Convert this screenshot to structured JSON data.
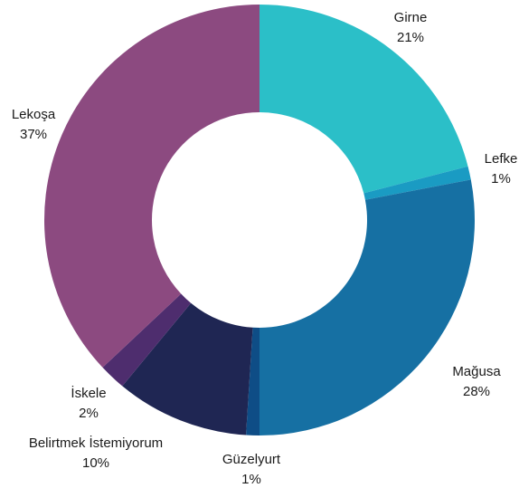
{
  "chart_data": {
    "type": "pie",
    "variant": "donut",
    "start": "top",
    "direction": "clockwise",
    "slices": [
      {
        "label": "Girne",
        "value": 21,
        "value_label": "21%",
        "color": "#2bbfc8"
      },
      {
        "label": "Lefke",
        "value": 1,
        "value_label": "1%",
        "color": "#1a9bc3"
      },
      {
        "label": "Mağusa",
        "value": 28,
        "value_label": "28%",
        "color": "#1670a3"
      },
      {
        "label": "Güzelyurt",
        "value": 1,
        "value_label": "1%",
        "color": "#0e4d86"
      },
      {
        "label": "Belirtmek İstemiyorum",
        "value": 10,
        "value_label": "10%",
        "color": "#1f2653"
      },
      {
        "label": "İskele",
        "value": 2,
        "value_label": "2%",
        "color": "#4e2d6e"
      },
      {
        "label": "Lekoşa",
        "value": 37,
        "value_label": "37%",
        "color": "#8c4a80"
      }
    ]
  }
}
